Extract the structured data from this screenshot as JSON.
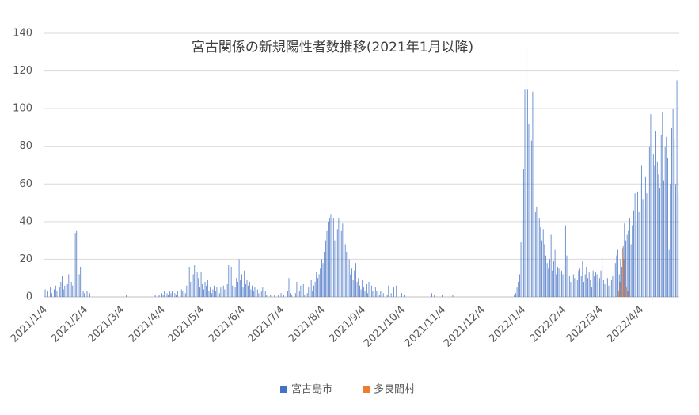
{
  "chart_data": {
    "type": "bar",
    "title": "宮古関係の新規陽性者数推移(2021年1月以降)",
    "categories": [
      null,
      "2021/1/4",
      null,
      null,
      null,
      null,
      null,
      null,
      null,
      null,
      null,
      null,
      null,
      null,
      null,
      null,
      null,
      null,
      null,
      null,
      null,
      null,
      null,
      null,
      null,
      null,
      null,
      null,
      null,
      null,
      null,
      null,
      "2021/2/4",
      null,
      null,
      null,
      null,
      null,
      null,
      null,
      null,
      null,
      null,
      null,
      null,
      null,
      null,
      null,
      null,
      null,
      null,
      null,
      null,
      null,
      null,
      null,
      null,
      null,
      null,
      null,
      "2021/3/4",
      null,
      null,
      null,
      null,
      null,
      null,
      null,
      null,
      null,
      null,
      null,
      null,
      null,
      null,
      null,
      null,
      null,
      null,
      null,
      null,
      null,
      null,
      null,
      null,
      null,
      null,
      null,
      null,
      null,
      null,
      "2021/4/4",
      null,
      null,
      null,
      null,
      null,
      null,
      null,
      null,
      null,
      null,
      null,
      null,
      null,
      null,
      null,
      null,
      null,
      null,
      null,
      null,
      null,
      null,
      null,
      null,
      null,
      null,
      null,
      null,
      null,
      "2021/5/4",
      null,
      null,
      null,
      null,
      null,
      null,
      null,
      null,
      null,
      null,
      null,
      null,
      null,
      null,
      null,
      null,
      null,
      null,
      null,
      null,
      null,
      null,
      null,
      null,
      null,
      null,
      null,
      null,
      null,
      null,
      "2021/6/4",
      null,
      null,
      null,
      null,
      null,
      null,
      null,
      null,
      null,
      null,
      null,
      null,
      null,
      null,
      null,
      null,
      null,
      null,
      null,
      null,
      null,
      null,
      null,
      null,
      null,
      null,
      null,
      null,
      null,
      "2021/7/4",
      null,
      null,
      null,
      null,
      null,
      null,
      null,
      null,
      null,
      null,
      null,
      null,
      null,
      null,
      null,
      null,
      null,
      null,
      null,
      null,
      null,
      null,
      null,
      null,
      null,
      null,
      null,
      null,
      null,
      null,
      "2021/8/4",
      null,
      null,
      null,
      null,
      null,
      null,
      null,
      null,
      null,
      null,
      null,
      null,
      null,
      null,
      null,
      null,
      null,
      null,
      null,
      null,
      null,
      null,
      null,
      null,
      null,
      null,
      null,
      null,
      null,
      null,
      "2021/9/4",
      null,
      null,
      null,
      null,
      null,
      null,
      null,
      null,
      null,
      null,
      null,
      null,
      null,
      null,
      null,
      null,
      null,
      null,
      null,
      null,
      null,
      null,
      null,
      null,
      null,
      null,
      null,
      null,
      null,
      "2021/10/4",
      null,
      null,
      null,
      null,
      null,
      null,
      null,
      null,
      null,
      null,
      null,
      null,
      null,
      null,
      null,
      null,
      null,
      null,
      null,
      null,
      null,
      null,
      null,
      null,
      null,
      null,
      null,
      null,
      null,
      null,
      "2021/11/4",
      null,
      null,
      null,
      null,
      null,
      null,
      null,
      null,
      null,
      null,
      null,
      null,
      null,
      null,
      null,
      null,
      null,
      null,
      null,
      null,
      null,
      null,
      null,
      null,
      null,
      null,
      null,
      null,
      null,
      "2021/12/4",
      null,
      null,
      null,
      null,
      null,
      null,
      null,
      null,
      null,
      null,
      null,
      null,
      null,
      null,
      null,
      null,
      null,
      null,
      null,
      null,
      null,
      null,
      null,
      null,
      null,
      null,
      null,
      null,
      null,
      null,
      "2022/1/4",
      null,
      null,
      null,
      null,
      null,
      null,
      null,
      null,
      null,
      null,
      null,
      null,
      null,
      null,
      null,
      null,
      null,
      null,
      null,
      null,
      null,
      null,
      null,
      null,
      null,
      null,
      null,
      null,
      null,
      null,
      "2022/2/4",
      null,
      null,
      null,
      null,
      null,
      null,
      null,
      null,
      null,
      null,
      null,
      null,
      null,
      null,
      null,
      null,
      null,
      null,
      null,
      null,
      null,
      null,
      null,
      null,
      null,
      null,
      null,
      "2022/3/4",
      null,
      null,
      null,
      null,
      null,
      null,
      null,
      null,
      null,
      null,
      null,
      null,
      null,
      null,
      null,
      null,
      null,
      null,
      null,
      null,
      null,
      null,
      null,
      null,
      null,
      null,
      null,
      null,
      null,
      null,
      "2022/4/4",
      null,
      null,
      null,
      null,
      null,
      null,
      null,
      null,
      null,
      null,
      null,
      null,
      null,
      null,
      null,
      null,
      null,
      null,
      null,
      null,
      null,
      null,
      null,
      null,
      null,
      null,
      null,
      null
    ],
    "series": [
      {
        "name": "宮古島市",
        "color": "#4472c4",
        "values": [
          0,
          4,
          0,
          3,
          0,
          5,
          2,
          0,
          4,
          6,
          3,
          0,
          5,
          8,
          11,
          4,
          6,
          9,
          7,
          12,
          14,
          8,
          6,
          10,
          34,
          35,
          18,
          12,
          16,
          8,
          3,
          2,
          0,
          3,
          0,
          2,
          0,
          0,
          0,
          0,
          0,
          0,
          0,
          0,
          0,
          0,
          0,
          0,
          0,
          0,
          0,
          0,
          0,
          0,
          0,
          0,
          0,
          0,
          0,
          0,
          0,
          0,
          0,
          1,
          0,
          0,
          0,
          0,
          0,
          0,
          0,
          0,
          0,
          0,
          0,
          0,
          0,
          0,
          1,
          0,
          0,
          0,
          0,
          0,
          0,
          1,
          0,
          2,
          1,
          0,
          2,
          1,
          3,
          0,
          2,
          1,
          3,
          2,
          3,
          0,
          2,
          1,
          3,
          0,
          2,
          4,
          3,
          5,
          2,
          6,
          4,
          16,
          8,
          14,
          12,
          17,
          6,
          13,
          10,
          5,
          13,
          7,
          4,
          8,
          6,
          9,
          3,
          5,
          2,
          4,
          6,
          3,
          5,
          4,
          2,
          5,
          3,
          6,
          4,
          12,
          7,
          17,
          13,
          16,
          6,
          14,
          5,
          10,
          8,
          20,
          9,
          12,
          5,
          14,
          7,
          9,
          6,
          8,
          4,
          6,
          3,
          5,
          7,
          4,
          2,
          6,
          3,
          5,
          2,
          3,
          1,
          2,
          0,
          1,
          2,
          0,
          1,
          0,
          0,
          1,
          0,
          2,
          0,
          1,
          0,
          0,
          3,
          10,
          2,
          1,
          0,
          5,
          2,
          8,
          4,
          3,
          6,
          2,
          7,
          1,
          0,
          2,
          5,
          4,
          9,
          3,
          6,
          8,
          13,
          10,
          12,
          15,
          20,
          18,
          24,
          30,
          35,
          40,
          42,
          44,
          38,
          42,
          30,
          25,
          36,
          42,
          20,
          35,
          39,
          30,
          28,
          24,
          18,
          20,
          12,
          15,
          9,
          14,
          18,
          8,
          10,
          6,
          4,
          9,
          5,
          3,
          7,
          2,
          8,
          4,
          6,
          3,
          2,
          5,
          3,
          2,
          1,
          3,
          1,
          2,
          0,
          4,
          1,
          6,
          0,
          2,
          0,
          5,
          0,
          6,
          0,
          0,
          0,
          2,
          0,
          1,
          0,
          0,
          0,
          0,
          0,
          0,
          0,
          0,
          0,
          0,
          0,
          0,
          0,
          0,
          0,
          0,
          0,
          0,
          0,
          0,
          2,
          0,
          1,
          0,
          0,
          0,
          0,
          0,
          1,
          0,
          0,
          0,
          0,
          0,
          0,
          0,
          1,
          0,
          0,
          0,
          0,
          0,
          0,
          0,
          0,
          0,
          0,
          0,
          0,
          0,
          0,
          0,
          0,
          0,
          0,
          0,
          0,
          0,
          0,
          0,
          0,
          0,
          0,
          0,
          0,
          0,
          0,
          0,
          0,
          0,
          0,
          0,
          0,
          0,
          0,
          0,
          0,
          0,
          0,
          0,
          0,
          0,
          0,
          1,
          2,
          5,
          8,
          12,
          29,
          41,
          68,
          110,
          132,
          110,
          92,
          55,
          83,
          109,
          61,
          45,
          48,
          38,
          42,
          37,
          30,
          36,
          28,
          22,
          18,
          15,
          20,
          33,
          14,
          19,
          25,
          12,
          16,
          15,
          13,
          14,
          12,
          16,
          38,
          22,
          20,
          11,
          8,
          6,
          12,
          10,
          13,
          9,
          14,
          15,
          11,
          19,
          8,
          12,
          16,
          10,
          13,
          9,
          5,
          14,
          11,
          13,
          12,
          8,
          10,
          14,
          21,
          9,
          7,
          13,
          10,
          6,
          15,
          9,
          11,
          14,
          18,
          22,
          25,
          12,
          20,
          16,
          27,
          39,
          30,
          33,
          35,
          42,
          28,
          38,
          46,
          55,
          40,
          56,
          45,
          60,
          70,
          52,
          48,
          64,
          55,
          40,
          80,
          97,
          83,
          76,
          70,
          88,
          72,
          65,
          58,
          86,
          98,
          62,
          80,
          85,
          74,
          25,
          60,
          90,
          100,
          84,
          60,
          115,
          55
        ]
      },
      {
        "name": "多良間村",
        "color": "#ed7d31",
        "values": [
          0,
          0,
          0,
          0,
          0,
          0,
          0,
          0,
          0,
          0,
          0,
          0,
          0,
          0,
          0,
          0,
          0,
          0,
          0,
          0,
          0,
          0,
          0,
          0,
          0,
          0,
          0,
          0,
          0,
          0,
          0,
          0,
          0,
          0,
          0,
          0,
          0,
          0,
          0,
          0,
          0,
          0,
          0,
          0,
          0,
          0,
          0,
          0,
          0,
          0,
          0,
          0,
          0,
          0,
          0,
          0,
          0,
          0,
          0,
          0,
          0,
          0,
          0,
          0,
          0,
          0,
          0,
          0,
          0,
          0,
          0,
          0,
          0,
          0,
          0,
          0,
          0,
          0,
          0,
          0,
          0,
          0,
          0,
          0,
          0,
          0,
          0,
          0,
          0,
          0,
          0,
          0,
          0,
          0,
          0,
          0,
          0,
          0,
          0,
          0,
          0,
          0,
          0,
          0,
          0,
          0,
          0,
          0,
          0,
          0,
          0,
          0,
          0,
          0,
          0,
          0,
          0,
          0,
          0,
          0,
          0,
          0,
          0,
          0,
          0,
          0,
          0,
          0,
          0,
          0,
          0,
          0,
          0,
          0,
          0,
          0,
          0,
          0,
          0,
          0,
          0,
          0,
          0,
          0,
          0,
          0,
          0,
          0,
          0,
          0,
          0,
          0,
          0,
          0,
          0,
          0,
          0,
          0,
          0,
          0,
          0,
          0,
          0,
          0,
          0,
          0,
          0,
          0,
          0,
          0,
          0,
          0,
          0,
          0,
          0,
          0,
          0,
          0,
          0,
          0,
          0,
          0,
          0,
          0,
          0,
          0,
          0,
          0,
          0,
          0,
          0,
          0,
          0,
          0,
          0,
          0,
          0,
          0,
          0,
          0,
          0,
          0,
          0,
          0,
          0,
          0,
          0,
          0,
          0,
          0,
          0,
          0,
          0,
          0,
          0,
          0,
          0,
          0,
          0,
          0,
          0,
          0,
          0,
          0,
          0,
          0,
          0,
          0,
          0,
          0,
          0,
          0,
          0,
          0,
          0,
          0,
          0,
          0,
          0,
          0,
          0,
          0,
          0,
          0,
          0,
          0,
          0,
          0,
          0,
          0,
          0,
          0,
          0,
          0,
          0,
          0,
          0,
          0,
          0,
          0,
          0,
          0,
          0,
          0,
          0,
          0,
          0,
          0,
          0,
          0,
          0,
          0,
          0,
          0,
          0,
          0,
          0,
          0,
          0,
          0,
          0,
          0,
          0,
          0,
          0,
          0,
          0,
          0,
          0,
          0,
          0,
          0,
          0,
          0,
          0,
          0,
          0,
          0,
          0,
          0,
          0,
          0,
          0,
          0,
          0,
          0,
          0,
          0,
          0,
          0,
          0,
          0,
          0,
          0,
          0,
          0,
          0,
          0,
          0,
          0,
          0,
          0,
          0,
          0,
          0,
          0,
          0,
          0,
          0,
          0,
          0,
          0,
          0,
          0,
          0,
          0,
          0,
          0,
          0,
          0,
          0,
          0,
          0,
          0,
          0,
          0,
          0,
          0,
          0,
          0,
          0,
          0,
          0,
          0,
          0,
          0,
          0,
          0,
          0,
          0,
          0,
          0,
          0,
          0,
          0,
          0,
          0,
          0,
          0,
          0,
          0,
          0,
          0,
          0,
          0,
          0,
          0,
          0,
          0,
          0,
          0,
          0,
          0,
          0,
          0,
          0,
          0,
          0,
          0,
          0,
          0,
          0,
          0,
          0,
          0,
          0,
          0,
          0,
          0,
          0,
          0,
          0,
          0,
          0,
          0,
          0,
          0,
          0,
          0,
          0,
          0,
          0,
          0,
          0,
          0,
          0,
          0,
          0,
          0,
          0,
          0,
          0,
          0,
          0,
          0,
          0,
          0,
          0,
          0,
          0,
          0,
          0,
          0,
          0,
          0,
          0,
          0,
          0,
          3,
          8,
          14,
          26,
          20,
          10,
          5,
          3,
          0,
          0,
          0,
          0,
          0,
          0,
          0,
          0,
          0,
          0,
          0,
          0,
          0,
          0,
          0,
          0,
          0,
          0,
          0,
          0,
          0,
          0,
          0,
          0,
          0,
          0,
          0,
          0,
          0,
          0,
          0,
          0,
          0,
          0,
          0,
          0,
          0,
          0,
          0
        ]
      }
    ],
    "ylim": [
      0,
      140
    ],
    "yticks": [
      0,
      20,
      40,
      60,
      80,
      100,
      120,
      140
    ],
    "grid": true,
    "legend": "bottom"
  }
}
